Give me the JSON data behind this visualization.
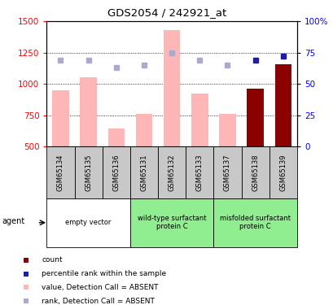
{
  "title": "GDS2054 / 242921_at",
  "samples": [
    "GSM65134",
    "GSM65135",
    "GSM65136",
    "GSM65131",
    "GSM65132",
    "GSM65133",
    "GSM65137",
    "GSM65138",
    "GSM65139"
  ],
  "bar_values": [
    950,
    1050,
    640,
    760,
    1430,
    920,
    760,
    960,
    1160
  ],
  "bar_absent": [
    true,
    true,
    true,
    true,
    true,
    true,
    true,
    false,
    false
  ],
  "rank_values": [
    69,
    69,
    63,
    65,
    75,
    69,
    65,
    69,
    72
  ],
  "rank_absent": [
    true,
    true,
    true,
    true,
    true,
    true,
    true,
    false,
    false
  ],
  "ylim_left": [
    500,
    1500
  ],
  "ylim_right": [
    0,
    100
  ],
  "yticks_left": [
    500,
    750,
    1000,
    1250,
    1500
  ],
  "yticks_right": [
    0,
    25,
    50,
    75,
    100
  ],
  "ytick_labels_right": [
    "0",
    "25",
    "50",
    "75",
    "100%"
  ],
  "groups": [
    {
      "label": "empty vector",
      "start": 0,
      "end": 3
    },
    {
      "label": "wild-type surfactant\nprotein C",
      "start": 3,
      "end": 6
    },
    {
      "label": "misfolded surfactant\nprotein C",
      "start": 6,
      "end": 9
    }
  ],
  "color_bar_present": "#8B0000",
  "color_bar_absent": "#FFB6B6",
  "color_rank_present": "#1C1CB0",
  "color_rank_absent": "#AAAACC",
  "color_group_bg_empty": "#FFFFFF",
  "color_group_bg_green": "#90EE90",
  "color_sample_bg": "#C8C8C8",
  "grid_color": "black",
  "legend_items": [
    {
      "label": "count",
      "color": "#8B0000"
    },
    {
      "label": "percentile rank within the sample",
      "color": "#1C1CB0"
    },
    {
      "label": "value, Detection Call = ABSENT",
      "color": "#FFB6B6"
    },
    {
      "label": "rank, Detection Call = ABSENT",
      "color": "#AAAACC"
    }
  ]
}
